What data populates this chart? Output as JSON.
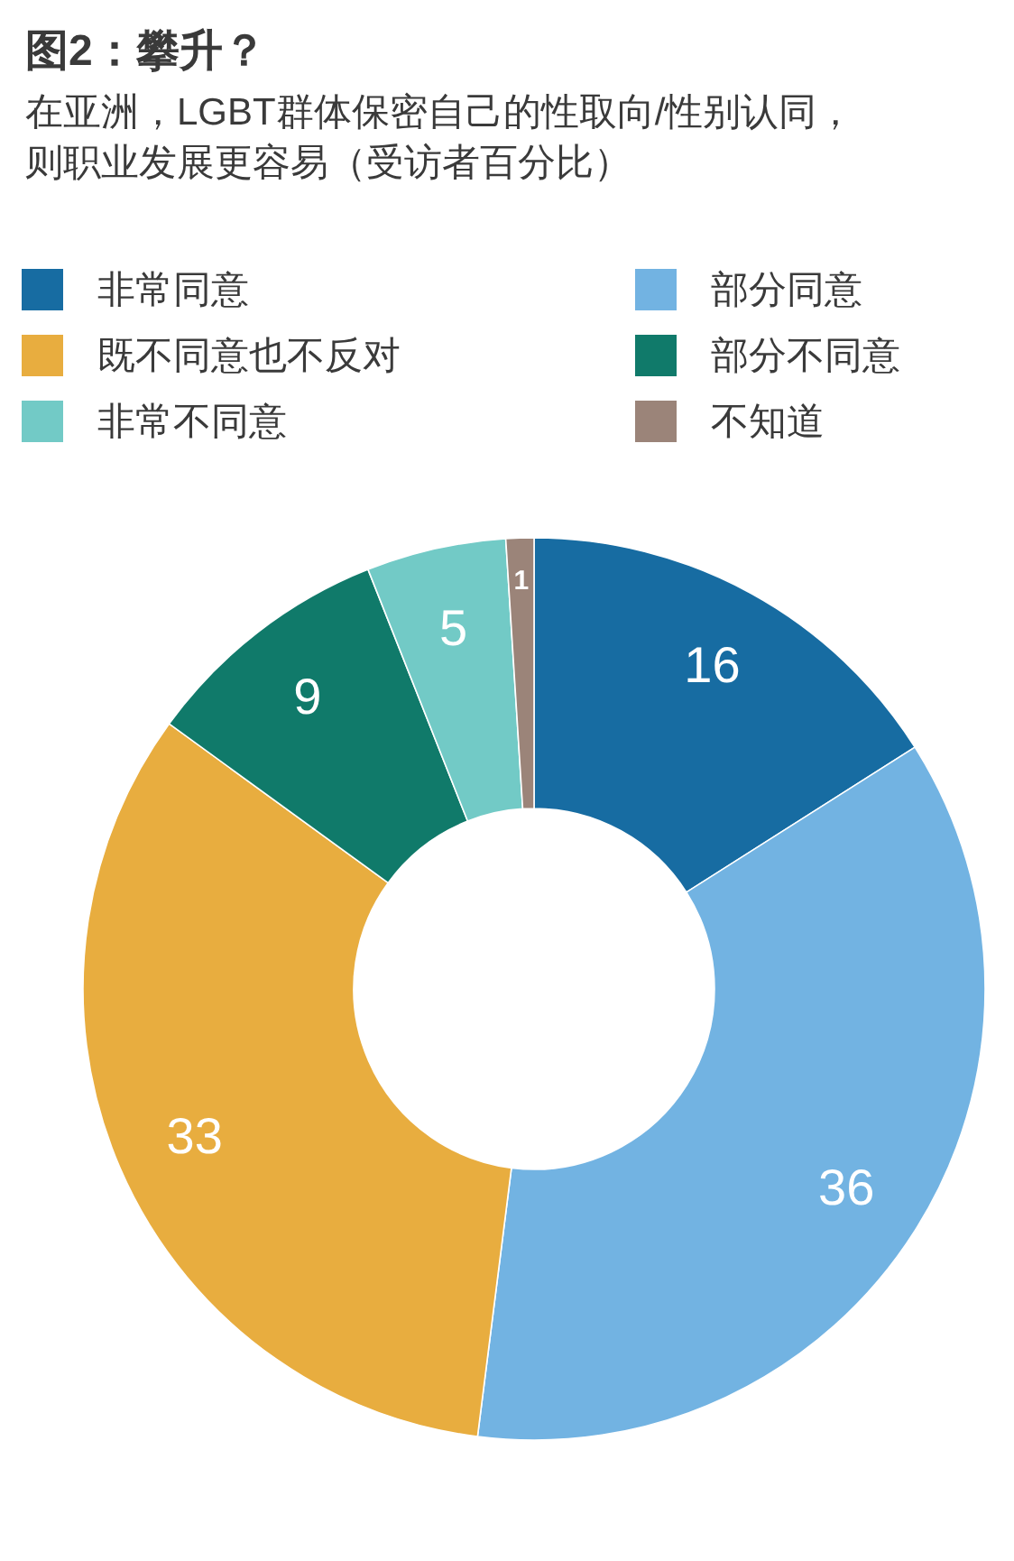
{
  "chart_data": {
    "type": "donut",
    "title": "图2：攀升？",
    "subtitle": "在亚洲，LGBT群体保密自己的性取向/性别认同，则职业发展更容易（受访者百分比）",
    "categories": [
      "非常同意",
      "部分同意",
      "既不同意也不反对",
      "部分不同意",
      "非常不同意",
      "不知道"
    ],
    "values": [
      16,
      36,
      33,
      9,
      5,
      1
    ],
    "colors": [
      "#176ca2",
      "#72b3e2",
      "#e8ad3f",
      "#107a6a",
      "#72cac6",
      "#9b8479"
    ],
    "data_labels": true,
    "legend": "top"
  }
}
